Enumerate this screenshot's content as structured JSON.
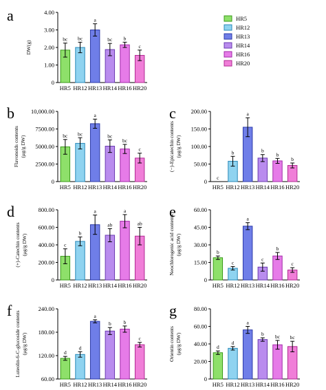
{
  "figure": {
    "background": "#ffffff"
  },
  "chart_data": [
    {
      "id": "a",
      "type": "bar",
      "panel_letter": "a",
      "ylabel": "DW(g)",
      "categories": [
        "HR5",
        "HR12",
        "HR13",
        "HR14",
        "HR16",
        "HR20"
      ],
      "values": [
        1.85,
        2.0,
        3.0,
        1.88,
        2.15,
        1.55
      ],
      "errors": [
        0.4,
        0.3,
        0.35,
        0.35,
        0.15,
        0.3
      ],
      "letters": [
        "bc",
        "bc",
        "a",
        "bc",
        "b",
        "c"
      ],
      "ylim": [
        0,
        4.0
      ],
      "yticks": [
        0,
        1.0,
        2.0,
        3.0,
        4.0
      ],
      "ytick_labels": [
        "0",
        "1.00",
        "2.00",
        "3.00",
        "4.00"
      ]
    },
    {
      "id": "b",
      "type": "bar",
      "panel_letter": "b",
      "ylabel": "Flavonoids contents\n(μg/g DW)",
      "categories": [
        "HR5",
        "HR12",
        "HR13",
        "HR14",
        "HR16",
        "HR20"
      ],
      "values": [
        4950,
        5450,
        8250,
        5050,
        4650,
        3350
      ],
      "errors": [
        1050,
        800,
        650,
        900,
        650,
        700
      ],
      "letters": [
        "bc",
        "bc",
        "a",
        "bc",
        "bc",
        "c"
      ],
      "ylim": [
        0,
        10000
      ],
      "yticks": [
        0,
        2500,
        5000,
        7500,
        10000
      ],
      "ytick_labels": [
        "0",
        "2500.00",
        "5000.00",
        "7500.00",
        "10,000.00"
      ]
    },
    {
      "id": "c",
      "type": "bar",
      "panel_letter": "c",
      "ylabel": "(−)-Epicatechin contents\n(μg/g DW)",
      "categories": [
        "HR5",
        "HR12",
        "HR13",
        "HR14",
        "HR16",
        "HR20"
      ],
      "values": [
        0,
        58,
        155,
        67,
        59,
        46
      ],
      "errors": [
        0,
        14,
        27,
        10,
        7,
        7
      ],
      "letters": [
        "c",
        "b",
        "a",
        "b",
        "b",
        "b"
      ],
      "ylim": [
        0,
        200
      ],
      "yticks": [
        0,
        50,
        100,
        150,
        200
      ],
      "ytick_labels": [
        "0",
        "50.00",
        "100.00",
        "150.00",
        "200.00"
      ]
    },
    {
      "id": "d",
      "type": "bar",
      "panel_letter": "d",
      "ylabel": "(+)-Catechin contents\n(μg/g DW)",
      "categories": [
        "HR5",
        "HR12",
        "HR13",
        "HR14",
        "HR16",
        "HR20"
      ],
      "values": [
        270,
        440,
        630,
        510,
        670,
        500
      ],
      "errors": [
        85,
        50,
        110,
        75,
        75,
        100
      ],
      "letters": [
        "c",
        "b",
        "a",
        "ab",
        "a",
        "ab"
      ],
      "ylim": [
        0,
        800
      ],
      "yticks": [
        0,
        200,
        400,
        600,
        800
      ],
      "ytick_labels": [
        "0",
        "200.00",
        "400.00",
        "600.00",
        "800.00"
      ]
    },
    {
      "id": "e",
      "type": "bar",
      "panel_letter": "e",
      "ylabel": "Neochlorogenic acid contents\n(μg/g DW)",
      "categories": [
        "HR5",
        "HR12",
        "HR13",
        "HR14",
        "HR16",
        "HR20"
      ],
      "values": [
        19,
        10,
        46,
        11,
        20.5,
        8.5
      ],
      "errors": [
        1.5,
        1.5,
        3,
        3.5,
        3,
        2
      ],
      "letters": [
        "b",
        "c",
        "a",
        "c",
        "b",
        "c"
      ],
      "ylim": [
        0,
        60
      ],
      "yticks": [
        0,
        15,
        30,
        45,
        60
      ],
      "ytick_labels": [
        "0",
        "15.00",
        "30.00",
        "45.00",
        "60.00"
      ]
    },
    {
      "id": "f",
      "type": "bar",
      "panel_letter": "f",
      "ylabel": "Luteolin-6-C-glucoside contents\n(μg/g DW)",
      "categories": [
        "HR5",
        "HR12",
        "HR13",
        "HR14",
        "HR16",
        "HR20"
      ],
      "values": [
        113,
        123,
        208,
        183,
        188,
        148
      ],
      "errors": [
        5,
        7,
        4,
        9,
        8,
        6
      ],
      "letters": [
        "d",
        "d",
        "a",
        "b",
        "b",
        "c"
      ],
      "ylim": [
        60,
        240
      ],
      "yticks": [
        60,
        120,
        180,
        240
      ],
      "ytick_labels": [
        "60.00",
        "120.00",
        "180.00",
        "240.00"
      ]
    },
    {
      "id": "g",
      "type": "bar",
      "panel_letter": "g",
      "ylabel": "Orientin contents\n(μg/g DW)",
      "categories": [
        "HR5",
        "HR12",
        "HR13",
        "HR14",
        "HR16",
        "HR20"
      ],
      "values": [
        30,
        35,
        56,
        45,
        39,
        37
      ],
      "errors": [
        2,
        2,
        4,
        2,
        5,
        6
      ],
      "letters": [
        "d",
        "d",
        "a",
        "b",
        "bc",
        "bc"
      ],
      "ylim": [
        0,
        80
      ],
      "yticks": [
        0,
        20,
        40,
        60,
        80
      ],
      "ytick_labels": [
        "0",
        "20.00",
        "40.00",
        "60.00",
        "80.00"
      ]
    }
  ],
  "legend": {
    "placement": "top-right",
    "entries": [
      {
        "label": "HR5",
        "fill": "#8ee06a",
        "stroke": "#3a9a1a"
      },
      {
        "label": "HR12",
        "fill": "#8fd3f0",
        "stroke": "#2a88b8"
      },
      {
        "label": "HR13",
        "fill": "#6f7ee8",
        "stroke": "#2c3aa8"
      },
      {
        "label": "HR14",
        "fill": "#b98cee",
        "stroke": "#6a3bb0"
      },
      {
        "label": "HR16",
        "fill": "#e67be8",
        "stroke": "#a22aa8"
      },
      {
        "label": "HR20",
        "fill": "#f07ed8",
        "stroke": "#b02a92"
      }
    ]
  }
}
